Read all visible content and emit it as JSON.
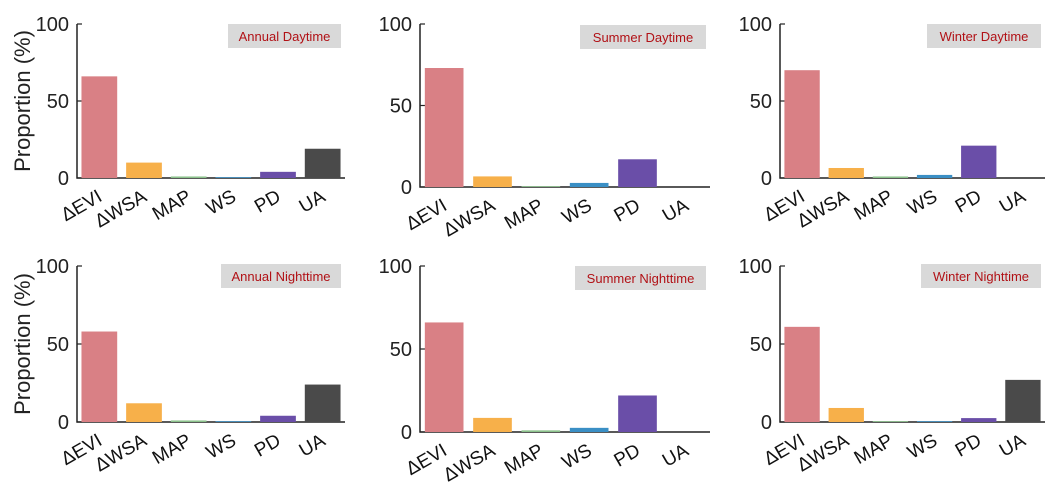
{
  "colors": {
    "ΔEVI": "#d98085",
    "ΔWSA": "#f7b04a",
    "MAP": "#8cc28c",
    "WS": "#3a8fc5",
    "PD": "#6a4ea8",
    "UA": "#4a4a4a"
  },
  "chart_data": [
    {
      "type": "bar",
      "title": "Annual Daytime",
      "ylabel": "Proportion (%)",
      "ylim": [
        0,
        100
      ],
      "yticks": [
        0,
        50,
        100
      ],
      "categories": [
        "ΔEVI",
        "ΔWSA",
        "MAP",
        "WS",
        "PD",
        "UA"
      ],
      "values": [
        66,
        10,
        1,
        0.5,
        4,
        19
      ]
    },
    {
      "type": "bar",
      "title": "Summer Daytime",
      "ylabel": "",
      "ylim": [
        0,
        100
      ],
      "yticks": [
        0,
        50,
        100
      ],
      "categories": [
        "ΔEVI",
        "ΔWSA",
        "MAP",
        "WS",
        "PD",
        "UA"
      ],
      "values": [
        73,
        6.5,
        0.5,
        2.5,
        17,
        0
      ]
    },
    {
      "type": "bar",
      "title": "Winter Daytime",
      "ylabel": "",
      "ylim": [
        0,
        100
      ],
      "yticks": [
        0,
        50,
        100
      ],
      "categories": [
        "ΔEVI",
        "ΔWSA",
        "MAP",
        "WS",
        "PD",
        "UA"
      ],
      "values": [
        70,
        6.5,
        1,
        2,
        21,
        0
      ]
    },
    {
      "type": "bar",
      "title": "Annual Nighttime",
      "ylabel": "Proportion (%)",
      "ylim": [
        0,
        100
      ],
      "yticks": [
        0,
        50,
        100
      ],
      "categories": [
        "ΔEVI",
        "ΔWSA",
        "MAP",
        "WS",
        "PD",
        "UA"
      ],
      "values": [
        58,
        12,
        1,
        0.5,
        4,
        24
      ]
    },
    {
      "type": "bar",
      "title": "Summer Nighttime",
      "ylabel": "",
      "ylim": [
        0,
        100
      ],
      "yticks": [
        0,
        50,
        100
      ],
      "categories": [
        "ΔEVI",
        "ΔWSA",
        "MAP",
        "WS",
        "PD",
        "UA"
      ],
      "values": [
        66,
        8.5,
        1,
        2.5,
        22,
        0
      ]
    },
    {
      "type": "bar",
      "title": "Winter Nighttime",
      "ylabel": "",
      "ylim": [
        0,
        100
      ],
      "yticks": [
        0,
        50,
        100
      ],
      "categories": [
        "ΔEVI",
        "ΔWSA",
        "MAP",
        "WS",
        "PD",
        "UA"
      ],
      "values": [
        61,
        9,
        0.5,
        0.5,
        2.5,
        27
      ]
    }
  ]
}
